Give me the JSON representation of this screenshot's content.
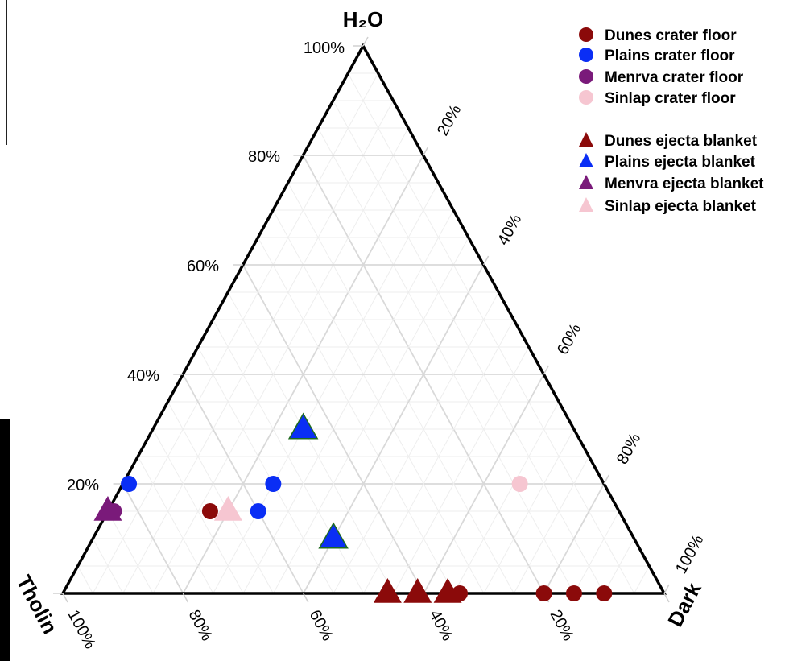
{
  "chart_data": {
    "type": "scatter",
    "subtype": "ternary",
    "axes": {
      "top": "H₂O",
      "left": "Tholin",
      "right": "Dark"
    },
    "h2o_ticks": [
      "100%",
      "80%",
      "60%",
      "40%",
      "20%"
    ],
    "dark_ticks": [
      "20%",
      "40%",
      "60%",
      "80%",
      "100%"
    ],
    "tholin_ticks": [
      "100%",
      "80%",
      "60%",
      "40%",
      "20%"
    ],
    "grid": true,
    "legend_position": "top-right",
    "series": [
      {
        "name": "Dunes crater floor",
        "marker": "circle",
        "color": "#8b0a0a",
        "points": [
          {
            "h2o": 0.0,
            "dark": 0.66,
            "tholin": 0.34
          },
          {
            "h2o": 0.0,
            "dark": 0.8,
            "tholin": 0.2
          },
          {
            "h2o": 0.0,
            "dark": 0.85,
            "tholin": 0.15
          },
          {
            "h2o": 0.0,
            "dark": 0.9,
            "tholin": 0.1
          },
          {
            "h2o": 0.15,
            "dark": 0.17,
            "tholin": 0.68
          }
        ]
      },
      {
        "name": "Plains crater floor",
        "marker": "circle",
        "color": "#0a2ef5",
        "points": [
          {
            "h2o": 0.2,
            "dark": 0.01,
            "tholin": 0.79
          },
          {
            "h2o": 0.2,
            "dark": 0.25,
            "tholin": 0.55
          },
          {
            "h2o": 0.15,
            "dark": 0.25,
            "tholin": 0.6
          }
        ]
      },
      {
        "name": "Menrva crater floor",
        "marker": "circle",
        "color": "#7a1a7a",
        "points": [
          {
            "h2o": 0.15,
            "dark": 0.01,
            "tholin": 0.84
          }
        ]
      },
      {
        "name": "Sinlap crater floor",
        "marker": "circle",
        "color": "#f6c6d1",
        "points": [
          {
            "h2o": 0.2,
            "dark": 0.66,
            "tholin": 0.14
          }
        ]
      },
      {
        "name": "Dunes ejecta blanket",
        "marker": "triangle",
        "color": "#8b0a0a",
        "points": [
          {
            "h2o": 0.0,
            "dark": 0.54,
            "tholin": 0.46
          },
          {
            "h2o": 0.0,
            "dark": 0.59,
            "tholin": 0.41
          },
          {
            "h2o": 0.0,
            "dark": 0.64,
            "tholin": 0.36
          }
        ]
      },
      {
        "name": "Plains ejecta blanket",
        "marker": "triangle",
        "color": "#0a2ef5",
        "points": [
          {
            "h2o": 0.3,
            "dark": 0.25,
            "tholin": 0.45
          },
          {
            "h2o": 0.1,
            "dark": 0.4,
            "tholin": 0.5
          }
        ]
      },
      {
        "name": "Menvra ejecta blanket",
        "marker": "triangle",
        "color": "#7a1a7a",
        "points": [
          {
            "h2o": 0.15,
            "dark": 0.0,
            "tholin": 0.85
          }
        ]
      },
      {
        "name": "Sinlap ejecta blanket",
        "marker": "triangle",
        "color": "#f6c6d1",
        "points": [
          {
            "h2o": 0.15,
            "dark": 0.2,
            "tholin": 0.65
          }
        ]
      }
    ]
  }
}
